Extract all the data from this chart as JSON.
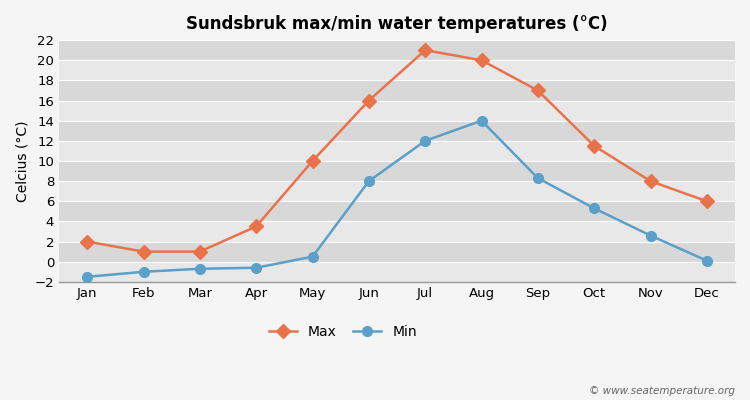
{
  "title": "Sundsbruk max/min water temperatures (°C)",
  "xlabel_months": [
    "Jan",
    "Feb",
    "Mar",
    "Apr",
    "May",
    "Jun",
    "Jul",
    "Aug",
    "Sep",
    "Oct",
    "Nov",
    "Dec"
  ],
  "max_values": [
    2,
    1,
    1,
    3.5,
    10,
    16,
    21,
    20,
    17,
    11.5,
    8,
    6
  ],
  "min_values": [
    -1.5,
    -1,
    -0.7,
    -0.6,
    0.5,
    8,
    12,
    14,
    8.3,
    5.3,
    2.6,
    0.1
  ],
  "max_color": "#e8734a",
  "min_color": "#5aa0c8",
  "ylabel": "Celcius (°C)",
  "ylim": [
    -2,
    22
  ],
  "yticks": [
    -2,
    0,
    2,
    4,
    6,
    8,
    10,
    12,
    14,
    16,
    18,
    20,
    22
  ],
  "band_colors": [
    "#e8e8e8",
    "#d8d8d8"
  ],
  "outer_bg": "#f5f5f5",
  "grid_line_color": "#ffffff",
  "legend_labels": [
    "Max",
    "Min"
  ],
  "watermark": "© www.seatemperature.org",
  "title_fontsize": 12,
  "axis_label_fontsize": 10,
  "tick_fontsize": 9.5,
  "legend_fontsize": 10,
  "linewidth": 1.8,
  "markersize": 7
}
